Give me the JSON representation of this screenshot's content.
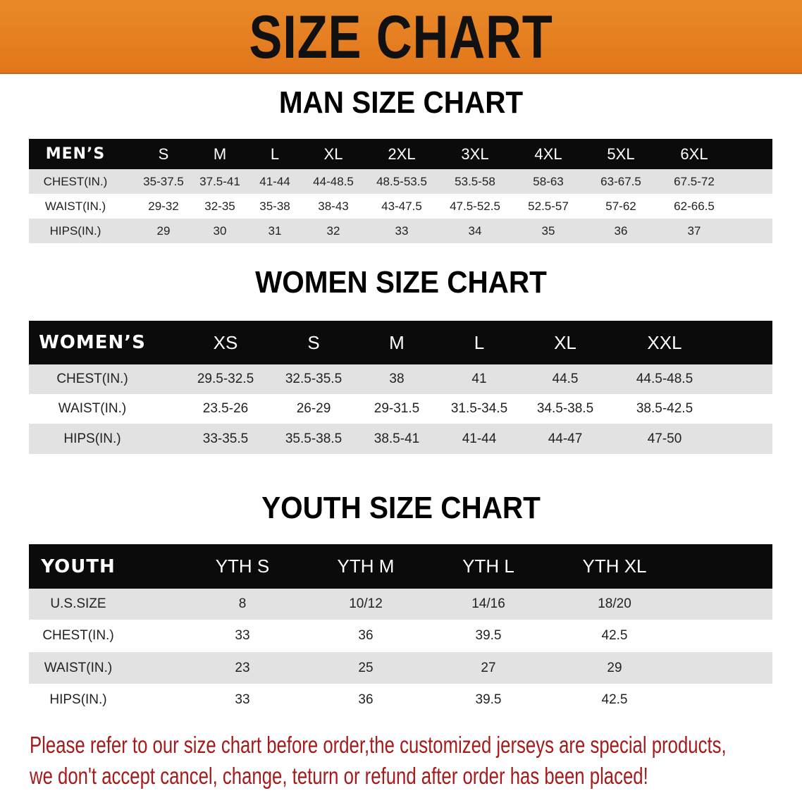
{
  "banner_title": "SIZE CHART",
  "men": {
    "title": "MAN SIZE CHART",
    "header": [
      "MEN’S",
      "S",
      "M",
      "L",
      "XL",
      "2XL",
      "3XL",
      "4XL",
      "5XL",
      "6XL"
    ],
    "rows": [
      [
        "CHEST(IN.)",
        "35-37.5",
        "37.5-41",
        "41-44",
        "44-48.5",
        "48.5-53.5",
        "53.5-58",
        "58-63",
        "63-67.5",
        "67.5-72"
      ],
      [
        "WAIST(IN.)",
        "29-32",
        "32-35",
        "35-38",
        "38-43",
        "43-47.5",
        "47.5-52.5",
        "52.5-57",
        "57-62",
        "62-66.5"
      ],
      [
        "HIPS(IN.)",
        "29",
        "30",
        "31",
        "32",
        "33",
        "34",
        "35",
        "36",
        "37"
      ]
    ]
  },
  "women": {
    "title": "WOMEN SIZE CHART",
    "header": [
      "WOMEN’S",
      "XS",
      "S",
      "M",
      "L",
      "XL",
      "XXL"
    ],
    "rows": [
      [
        "CHEST(IN.)",
        "29.5-32.5",
        "32.5-35.5",
        "38",
        "41",
        "44.5",
        "44.5-48.5"
      ],
      [
        "WAIST(IN.)",
        "23.5-26",
        "26-29",
        "29-31.5",
        "31.5-34.5",
        "34.5-38.5",
        "38.5-42.5"
      ],
      [
        "HIPS(IN.)",
        "33-35.5",
        "35.5-38.5",
        "38.5-41",
        "41-44",
        "44-47",
        "47-50"
      ]
    ]
  },
  "youth": {
    "title": "YOUTH SIZE CHART",
    "header": [
      "YOUTH",
      "YTH S",
      "YTH M",
      "YTH L",
      "YTH XL"
    ],
    "rows": [
      [
        "U.S.SIZE",
        "8",
        "10/12",
        "14/16",
        "18/20"
      ],
      [
        "CHEST(IN.)",
        "33",
        "36",
        "39.5",
        "42.5"
      ],
      [
        "WAIST(IN.)",
        "23",
        "25",
        "27",
        "29"
      ],
      [
        "HIPS(IN.)",
        "33",
        "36",
        "39.5",
        "42.5"
      ]
    ]
  },
  "notice": {
    "line1": "Please refer to our size chart before order,the customized jerseys are special products,",
    "line2": "we don't accept cancel, change, teturn or refund after order has been placed!"
  },
  "colors": {
    "banner": "#e4791c",
    "header_row": "#0b0b0b",
    "stripe": "#e2e2e2",
    "notice": "#a51b1b"
  }
}
